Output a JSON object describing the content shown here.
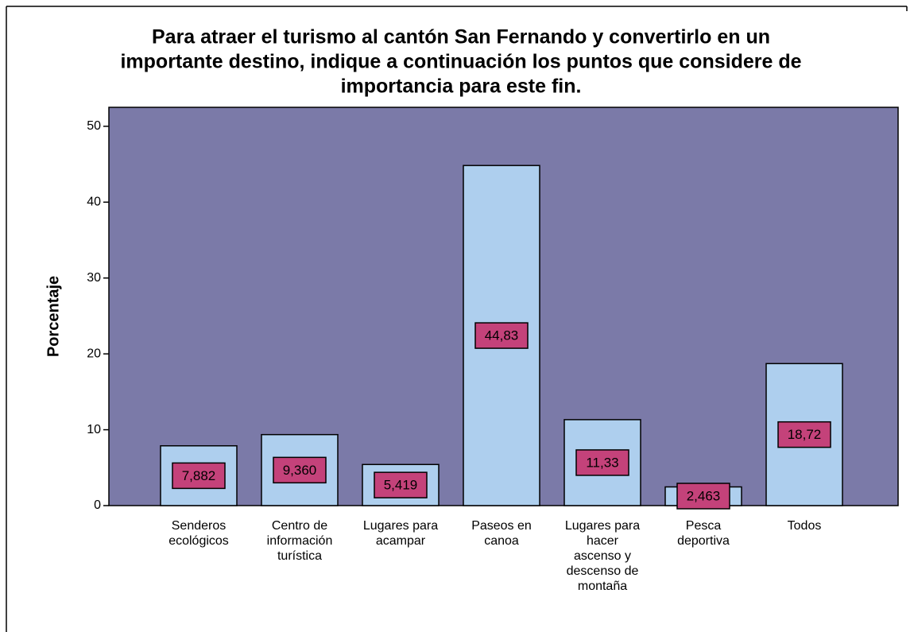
{
  "chart_data": {
    "type": "bar",
    "title": [
      "Para atraer el turismo al cantón San Fernando y convertirlo  en un",
      "importante destino, indique a continuación los puntos que considere de",
      "importancia para este fin."
    ],
    "y_label": "Porcentaje",
    "categories": [
      "Senderos ecológicos",
      "Centro de información turística",
      "Lugares para acampar",
      "Paseos en canoa",
      "Lugares para hacer ascenso y descenso de montaña",
      "Pesca deportiva",
      "Todos"
    ],
    "values": [
      7.882,
      9.36,
      5.419,
      44.83,
      11.33,
      2.463,
      18.72
    ],
    "value_labels": [
      "7,882",
      "9,360",
      "5,419",
      "44,83",
      "11,33",
      "2,463",
      "18,72"
    ],
    "color": "#aecfee",
    "background": "#7b7aa8",
    "label_color": "#c4427a",
    "ylim": [
      0,
      52.5
    ],
    "yticks": [
      0,
      10,
      20,
      30,
      40,
      50
    ]
  }
}
